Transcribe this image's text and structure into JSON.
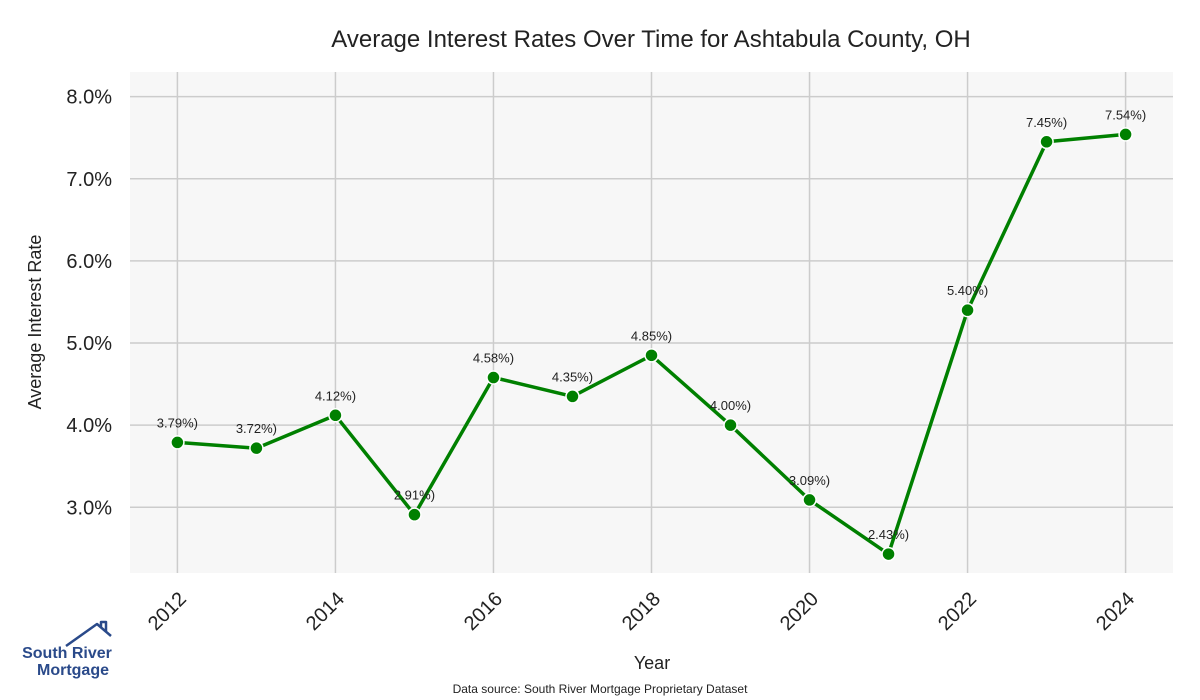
{
  "chart_data": {
    "type": "line",
    "title": "Average Interest Rates Over Time for Ashtabula County, OH",
    "xlabel": "Year",
    "ylabel": "Average Interest Rate",
    "x": [
      2012,
      2013,
      2014,
      2015,
      2016,
      2017,
      2018,
      2019,
      2020,
      2021,
      2022,
      2023,
      2024
    ],
    "series": [
      {
        "values": [
          3.79,
          3.72,
          4.12,
          2.91,
          4.58,
          4.35,
          4.85,
          4.0,
          3.09,
          2.43,
          5.4,
          7.45,
          7.54
        ],
        "point_labels": [
          "3.79%)",
          "3.72%)",
          "4.12%)",
          "2.91%)",
          "4.58%)",
          "4.35%)",
          "4.85%)",
          "4.00%)",
          "3.09%)",
          "2.43%)",
          "5.40%)",
          "7.45%)",
          "7.54%)"
        ]
      }
    ],
    "xticks": [
      "2012",
      "2014",
      "2016",
      "2018",
      "2020",
      "2022",
      "2024"
    ],
    "yticks": [
      "3.0%",
      "4.0%",
      "5.0%",
      "6.0%",
      "7.0%",
      "8.0%"
    ],
    "xlim": [
      2011.4,
      2024.6
    ],
    "ylim": [
      2.2,
      8.3
    ],
    "grid": true,
    "line_color": "#008000",
    "plot_background": "#f7f7f7",
    "grid_color": "#cccccc"
  },
  "footer": {
    "source": "Data source: South River Mortgage Proprietary Dataset"
  },
  "logo": {
    "line1": "South River",
    "line2": "Mortgage",
    "icon": "house-roof-icon",
    "color": "#2a4a8a"
  }
}
